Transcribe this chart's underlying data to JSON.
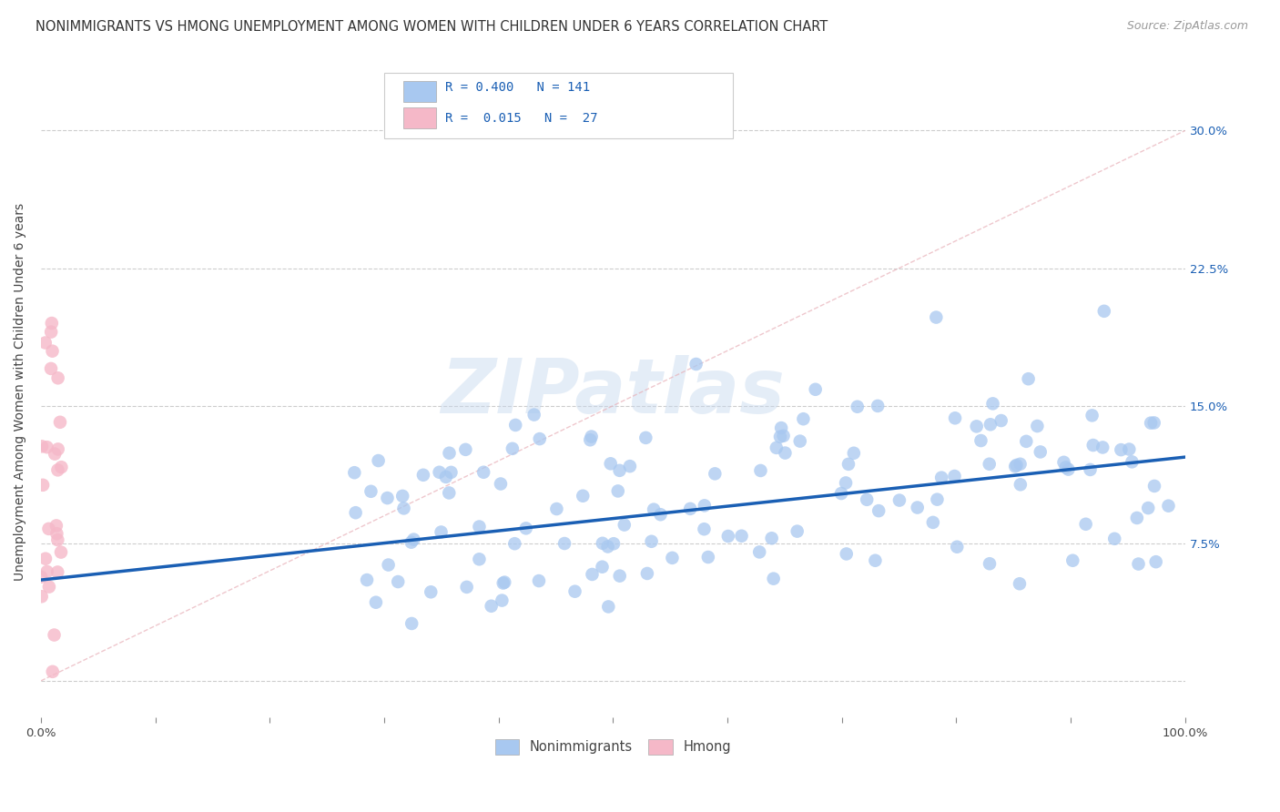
{
  "title": "NONIMMIGRANTS VS HMONG UNEMPLOYMENT AMONG WOMEN WITH CHILDREN UNDER 6 YEARS CORRELATION CHART",
  "source": "Source: ZipAtlas.com",
  "ylabel": "Unemployment Among Women with Children Under 6 years",
  "xlim": [
    0.0,
    1.0
  ],
  "ylim": [
    -0.02,
    0.335
  ],
  "ytick_positions": [
    0.0,
    0.075,
    0.15,
    0.225,
    0.3
  ],
  "ytick_labels": [
    "",
    "7.5%",
    "15.0%",
    "22.5%",
    "30.0%"
  ],
  "background_color": "#ffffff",
  "grid_color": "#c8c8c8",
  "watermark": "ZIPatlas",
  "nonimm_color": "#a8c8f0",
  "hmong_color": "#f5b8c8",
  "line_color": "#1a5fb4",
  "diag_color": "#e8b0b8",
  "legend_text_color": "#1a5fb4",
  "title_fontsize": 10.5,
  "source_fontsize": 9,
  "ylabel_fontsize": 10,
  "tick_fontsize": 9.5,
  "legend_fontsize": 10,
  "watermark_fontsize": 60,
  "nonimm_seed": 42,
  "hmong_seed": 99,
  "nonimm_N": 141,
  "hmong_N": 27,
  "reg_line_x0": 0.0,
  "reg_line_y0": 0.055,
  "reg_line_x1": 1.0,
  "reg_line_y1": 0.122
}
